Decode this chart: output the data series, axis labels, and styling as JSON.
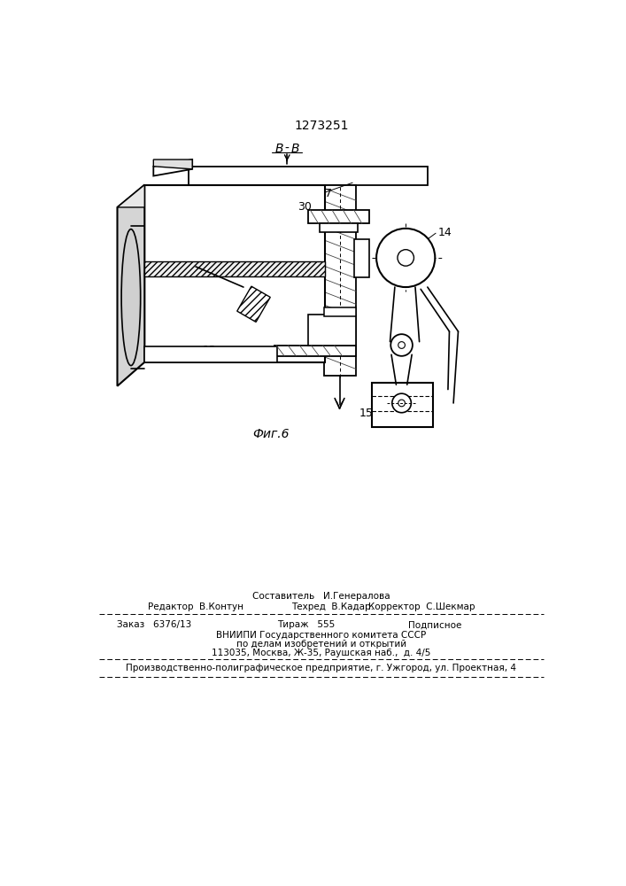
{
  "title": "1273251",
  "footer": {
    "line1_center": "Составитель   И.Генералова",
    "line1_left": "Редактор  В.Контун",
    "line1_center2": "Техред  В.Кадар.",
    "line1_right": "Корректор  С.Шекмар",
    "line2_left": "Заказ   6376/13",
    "line2_center": "Тираж   555",
    "line2_right": "Подписное",
    "line3": "ВНИИПИ Государственного комитета СССР",
    "line4": "по делам изобретений и открытий",
    "line5": "113035, Москва, Ж-35, Раушская наб.,  д. 4/5",
    "line6": "Производственно-полиграфическое предприятие, г. Ужгород, ул. Проектная, 4"
  },
  "background": "#ffffff"
}
